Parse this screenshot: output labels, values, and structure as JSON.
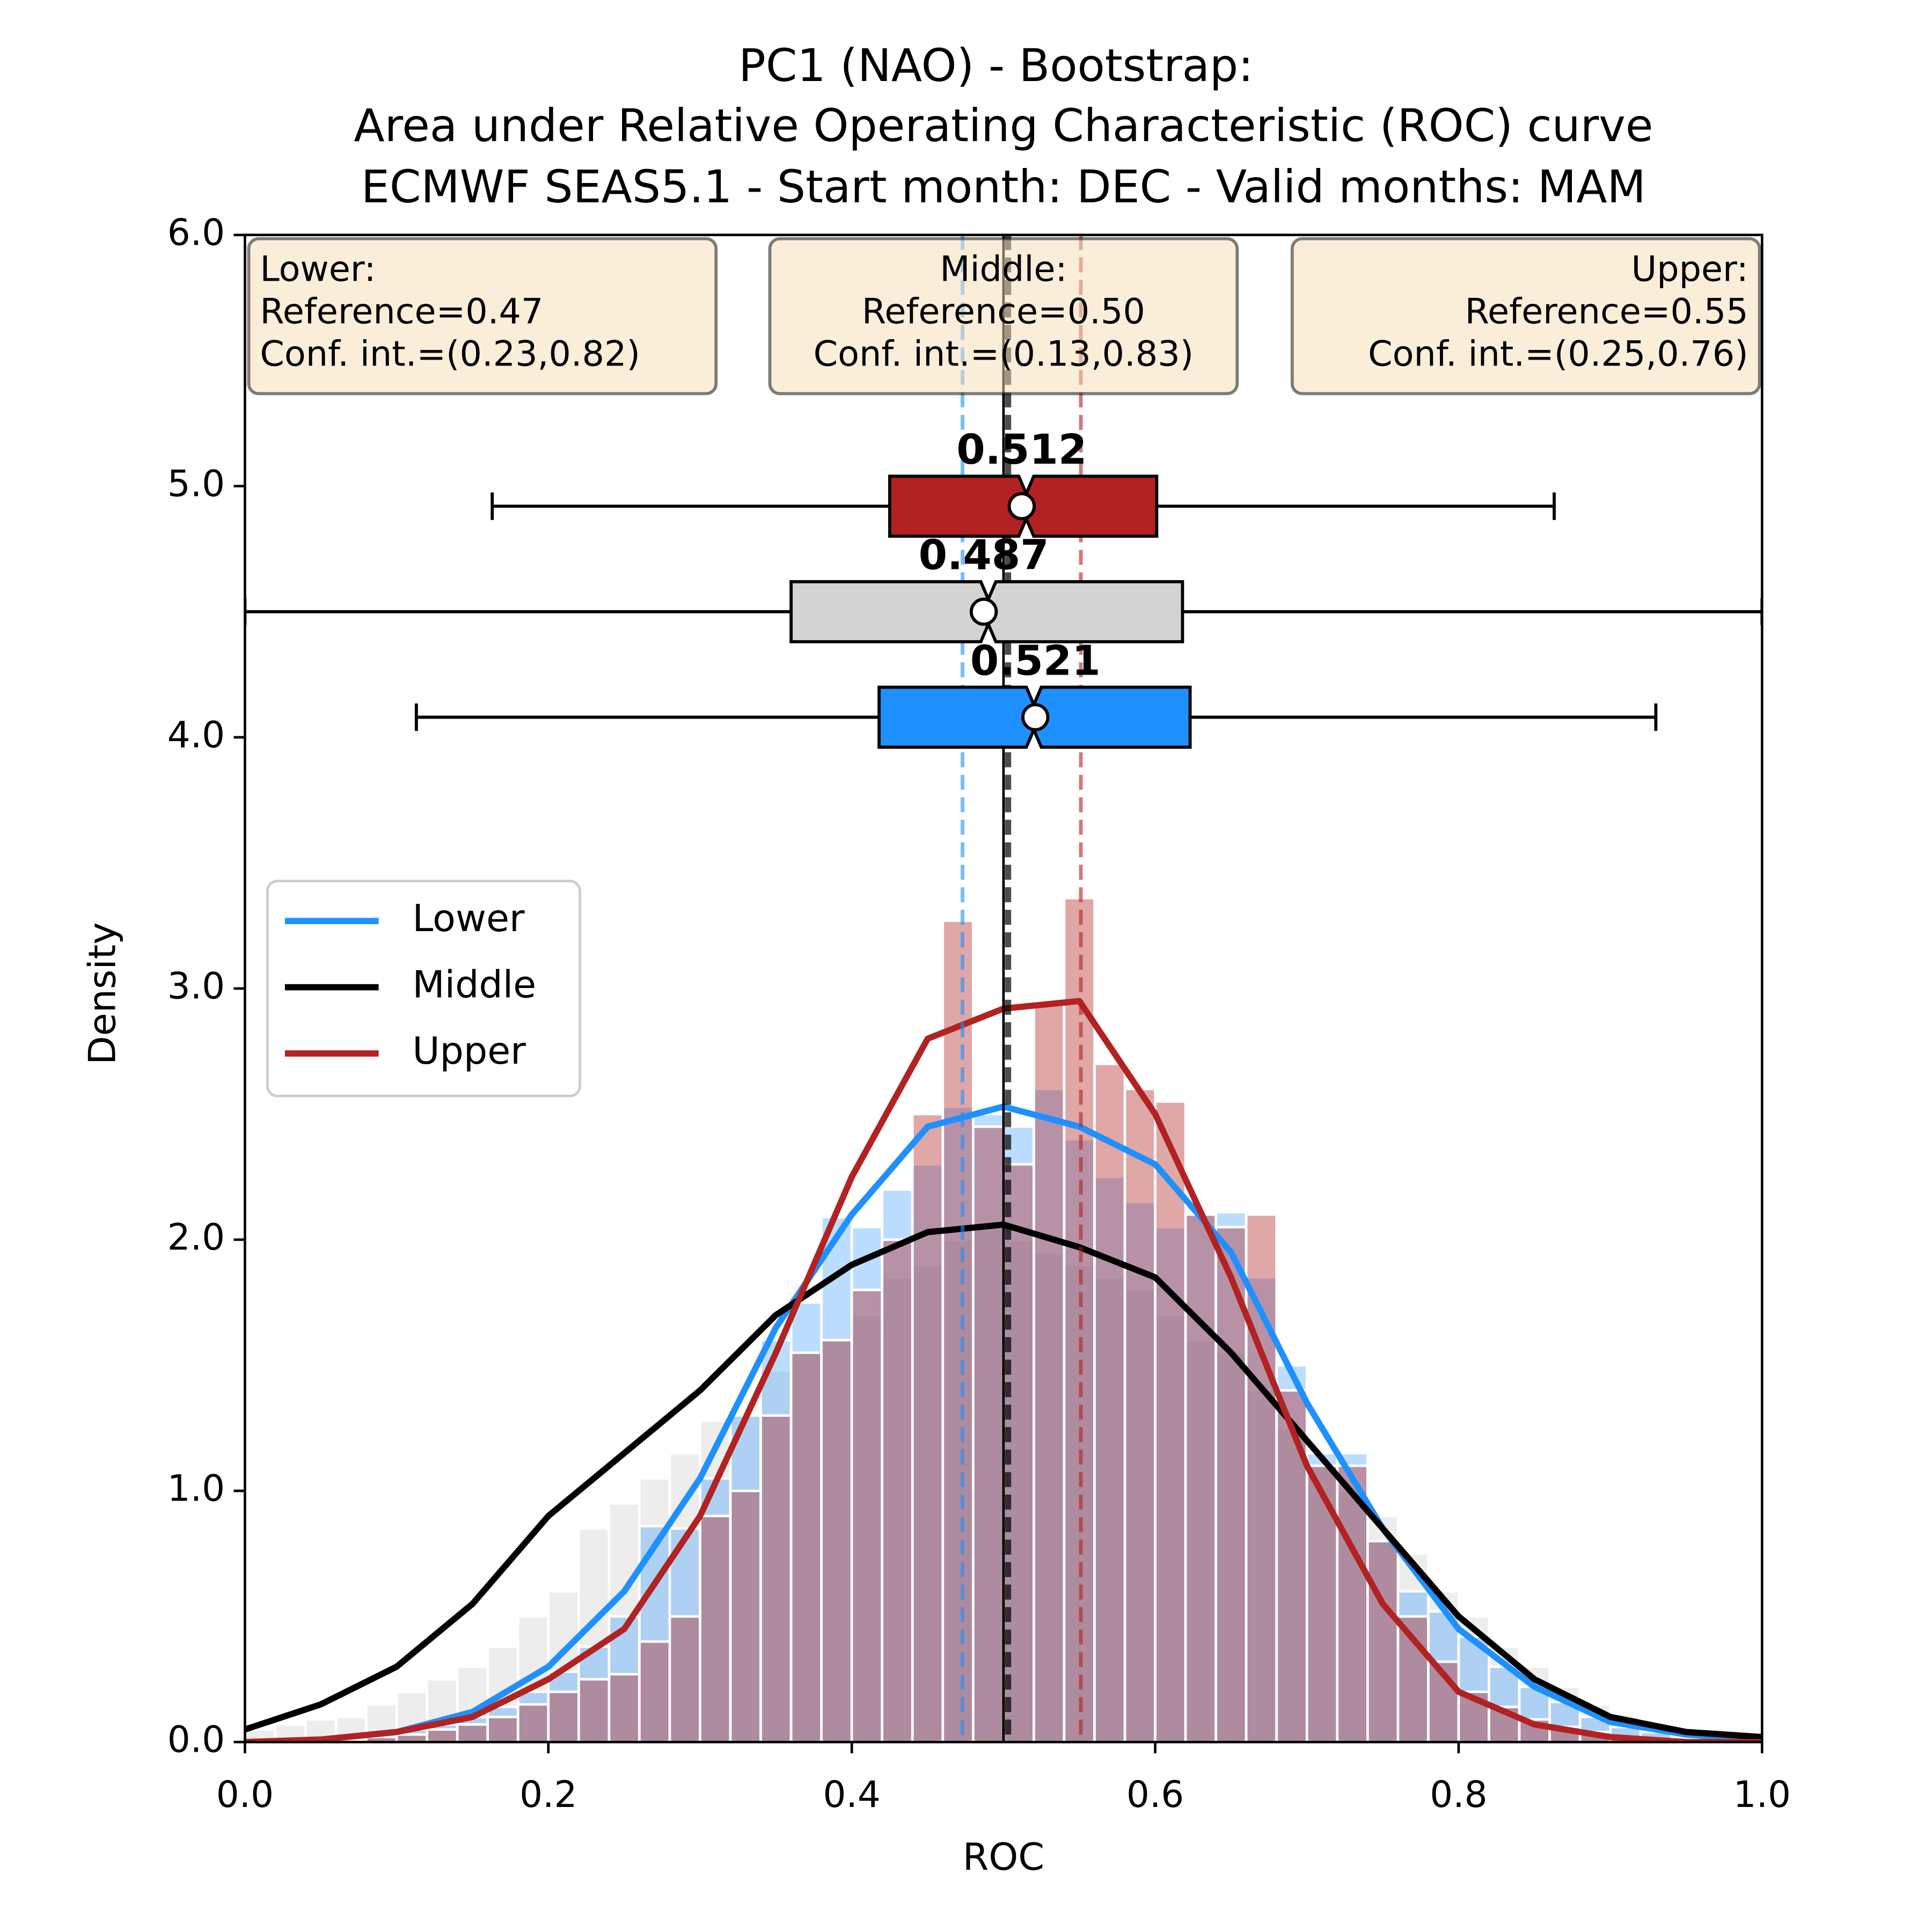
{
  "chart_data": {
    "type": "hist-kde-box",
    "title": [
      "PC1 (NAO) - Bootstrap:",
      "Area under Relative Operating Characteristic (ROC) curve",
      "ECMWF SEAS5.1 - Start month: DEC - Valid months: MAM"
    ],
    "x_label": "ROC",
    "y_label": "Density",
    "xlim": [
      0,
      1
    ],
    "ylim": [
      0,
      6
    ],
    "xticks": [
      {
        "value": 0,
        "label": "0.0"
      },
      0.2,
      0.4,
      0.6,
      0.8,
      {
        "value": 1,
        "label": "1.0"
      }
    ],
    "yticks": [
      {
        "value": 0,
        "label": "0.0"
      },
      {
        "value": 1,
        "label": "1.0"
      },
      {
        "value": 2,
        "label": "2.0"
      },
      {
        "value": 3,
        "label": "3.0"
      },
      {
        "value": 4,
        "label": "4.0"
      },
      {
        "value": 5,
        "label": "5.0"
      },
      {
        "value": 6,
        "label": "6.0"
      }
    ],
    "legend": "center left",
    "vline": 0.5,
    "bins": [
      0,
      0.02,
      0.04,
      0.06,
      0.08,
      0.1,
      0.12,
      0.14,
      0.16,
      0.18,
      0.2,
      0.22,
      0.24,
      0.26,
      0.28,
      0.3,
      0.32,
      0.34,
      0.36,
      0.38,
      0.4,
      0.42,
      0.44,
      0.46,
      0.48,
      0.5,
      0.52,
      0.54,
      0.56,
      0.58,
      0.6,
      0.62,
      0.64,
      0.66,
      0.68,
      0.7,
      0.72,
      0.74,
      0.76,
      0.78,
      0.8,
      0.82,
      0.84,
      0.86,
      0.88,
      0.9,
      0.92,
      0.94,
      0.96,
      0.98,
      1.0
    ],
    "kde_x": [
      0,
      0.05,
      0.1,
      0.15,
      0.2,
      0.25,
      0.3,
      0.35,
      0.4,
      0.45,
      0.5,
      0.55,
      0.6,
      0.65,
      0.7,
      0.75,
      0.8,
      0.85,
      0.9,
      0.95,
      1.0
    ],
    "series": [
      {
        "name": "Middle",
        "color": "#000000",
        "box_color": "#d3d3d3",
        "values": [
          0.05,
          0.07,
          0.09,
          0.1,
          0.15,
          0.2,
          0.25,
          0.3,
          0.38,
          0.5,
          0.6,
          0.85,
          0.95,
          1.05,
          1.15,
          1.28,
          1.3,
          1.48,
          1.55,
          1.6,
          1.7,
          1.85,
          1.9,
          2.0,
          2.05,
          2.0,
          1.95,
          1.9,
          1.85,
          1.8,
          1.7,
          1.6,
          1.55,
          1.4,
          1.25,
          1.1,
          1.0,
          0.9,
          0.75,
          0.6,
          0.5,
          0.38,
          0.3,
          0.22,
          0.15,
          0.1,
          0.07,
          0.05,
          0.03,
          0.02
        ],
        "kde": [
          0.05,
          0.15,
          0.3,
          0.55,
          0.9,
          1.15,
          1.4,
          1.7,
          1.9,
          2.03,
          2.06,
          1.97,
          1.85,
          1.55,
          1.2,
          0.85,
          0.5,
          0.25,
          0.1,
          0.04,
          0.02
        ],
        "reference": 0.503,
        "box": {
          "whislo": 0,
          "q1": 0.36,
          "median": 0.49,
          "q3": 0.618,
          "whishi": 1,
          "mean": 0.487
        }
      },
      {
        "name": "Lower",
        "color": "#1e90ff",
        "box_color": "#1e90ff",
        "values": [
          0.0,
          0.01,
          0.01,
          0.02,
          0.03,
          0.05,
          0.07,
          0.1,
          0.14,
          0.2,
          0.28,
          0.38,
          0.5,
          0.86,
          0.85,
          1.05,
          1.3,
          1.6,
          1.75,
          2.09,
          2.05,
          2.2,
          2.3,
          2.53,
          2.5,
          2.45,
          2.6,
          2.4,
          2.25,
          2.15,
          2.05,
          2.1,
          2.11,
          1.85,
          1.5,
          1.15,
          1.15,
          0.8,
          0.6,
          0.52,
          0.42,
          0.3,
          0.22,
          0.16,
          0.1,
          0.06,
          0.04,
          0.02,
          0.01,
          0.01
        ],
        "kde": [
          0.0,
          0.01,
          0.04,
          0.12,
          0.3,
          0.6,
          1.05,
          1.65,
          2.1,
          2.45,
          2.53,
          2.45,
          2.3,
          1.95,
          1.35,
          0.85,
          0.45,
          0.22,
          0.08,
          0.03,
          0.01
        ],
        "reference": 0.473,
        "box": {
          "whislo": 0.113,
          "q1": 0.418,
          "median": 0.52,
          "q3": 0.623,
          "whishi": 0.93,
          "mean": 0.521
        }
      },
      {
        "name": "Upper",
        "color": "#b22222",
        "box_color": "#b22222",
        "values": [
          0.0,
          0.0,
          0.0,
          0.01,
          0.02,
          0.03,
          0.05,
          0.07,
          0.1,
          0.15,
          0.2,
          0.25,
          0.27,
          0.4,
          0.5,
          0.9,
          1.0,
          1.3,
          1.55,
          1.6,
          1.8,
          2.0,
          2.5,
          3.27,
          2.45,
          2.3,
          2.95,
          3.36,
          2.7,
          2.6,
          2.55,
          2.1,
          2.05,
          2.1,
          1.4,
          1.1,
          1.1,
          0.8,
          0.5,
          0.32,
          0.2,
          0.14,
          0.09,
          0.06,
          0.04,
          0.02,
          0.01,
          0.01,
          0.0,
          0.0
        ],
        "kde": [
          0,
          0.01,
          0.04,
          0.1,
          0.25,
          0.45,
          0.9,
          1.55,
          2.25,
          2.8,
          2.92,
          2.95,
          2.5,
          1.85,
          1.1,
          0.55,
          0.2,
          0.07,
          0.02,
          0.0,
          0.0
        ],
        "reference": 0.551,
        "box": {
          "whislo": 0.163,
          "q1": 0.425,
          "median": 0.515,
          "q3": 0.601,
          "whishi": 0.863,
          "mean": 0.512
        }
      }
    ],
    "annotations": [
      {
        "lines": [
          "Lower:",
          "Reference=0.47",
          "Conf. int.=(0.23,0.82)"
        ]
      },
      {
        "lines": [
          "Middle:",
          "Reference=0.50",
          "Conf. int.=(0.13,0.83)"
        ]
      },
      {
        "lines": [
          "Upper:",
          "Reference=0.55",
          "Conf. int.=(0.25,0.76)"
        ]
      }
    ]
  }
}
